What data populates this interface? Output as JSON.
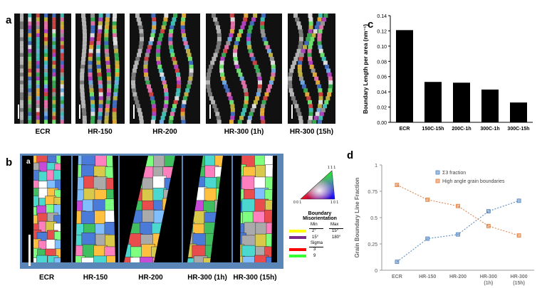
{
  "panel_a": {
    "letter": "a",
    "images": [
      {
        "caption": "ECR"
      },
      {
        "caption": "HR-150"
      },
      {
        "caption": "HR-200"
      },
      {
        "caption": "HR-300 (1h)"
      },
      {
        "caption": "HR-300 (15h)"
      }
    ]
  },
  "panel_b": {
    "letter": "b",
    "inner_letter": "a",
    "images": [
      {
        "caption": "ECR"
      },
      {
        "caption": "HR-150"
      },
      {
        "caption": "HR-200"
      },
      {
        "caption": "HR-300 (1h)"
      },
      {
        "caption": "HR-300 (15h)"
      }
    ],
    "legend": {
      "triangle_labels": {
        "top": "1 1 1",
        "left": "0 0 1",
        "right": "1 0 1"
      },
      "title_line1": "Boundary",
      "title_line2": "Misorientation",
      "col_min": "Min",
      "col_max": "Max",
      "rows": [
        {
          "min": "2°",
          "max": "15°",
          "color": "#ffff00"
        },
        {
          "min": "15°",
          "max": "180°",
          "color": "#7a2a8a"
        }
      ],
      "sigma_label": "Sigma",
      "sigma_rows": [
        {
          "value": "3",
          "color": "#ff0000"
        },
        {
          "value": "9",
          "color": "#33ff33"
        }
      ]
    }
  },
  "chart_data": [
    {
      "letter": "c",
      "type": "bar",
      "categories": [
        "ECR",
        "150C-15h",
        "200C-1h",
        "300C-1h",
        "300C-15h"
      ],
      "values": [
        0.121,
        0.053,
        0.052,
        0.043,
        0.026
      ],
      "ylabel": "Boundary Length per area (nm⁻¹)",
      "ylim": [
        0,
        0.14
      ],
      "yticks": [
        "0.00",
        "0.02",
        "0.04",
        "0.06",
        "0.08",
        "0.10",
        "0.12",
        "0.14"
      ],
      "bar_color": "#000000"
    },
    {
      "letter": "d",
      "type": "line",
      "categories": [
        "ECR",
        "HR-150",
        "HR-200",
        "HR-300\n(1h)",
        "HR-300\n(15h)"
      ],
      "ylabel": "Grain Boundary Line Fraction",
      "ylim": [
        0,
        1
      ],
      "yticks": [
        "0",
        "0.25",
        "0.5",
        "0.75",
        "1"
      ],
      "legend_position": "top-right",
      "series": [
        {
          "name": "Σ3 fraction",
          "values": [
            0.08,
            0.3,
            0.34,
            0.56,
            0.66
          ],
          "color": "#4f81bd"
        },
        {
          "name": "High angle grain boundaries",
          "values": [
            0.81,
            0.67,
            0.61,
            0.42,
            0.33
          ],
          "color": "#e07b39"
        }
      ]
    }
  ]
}
